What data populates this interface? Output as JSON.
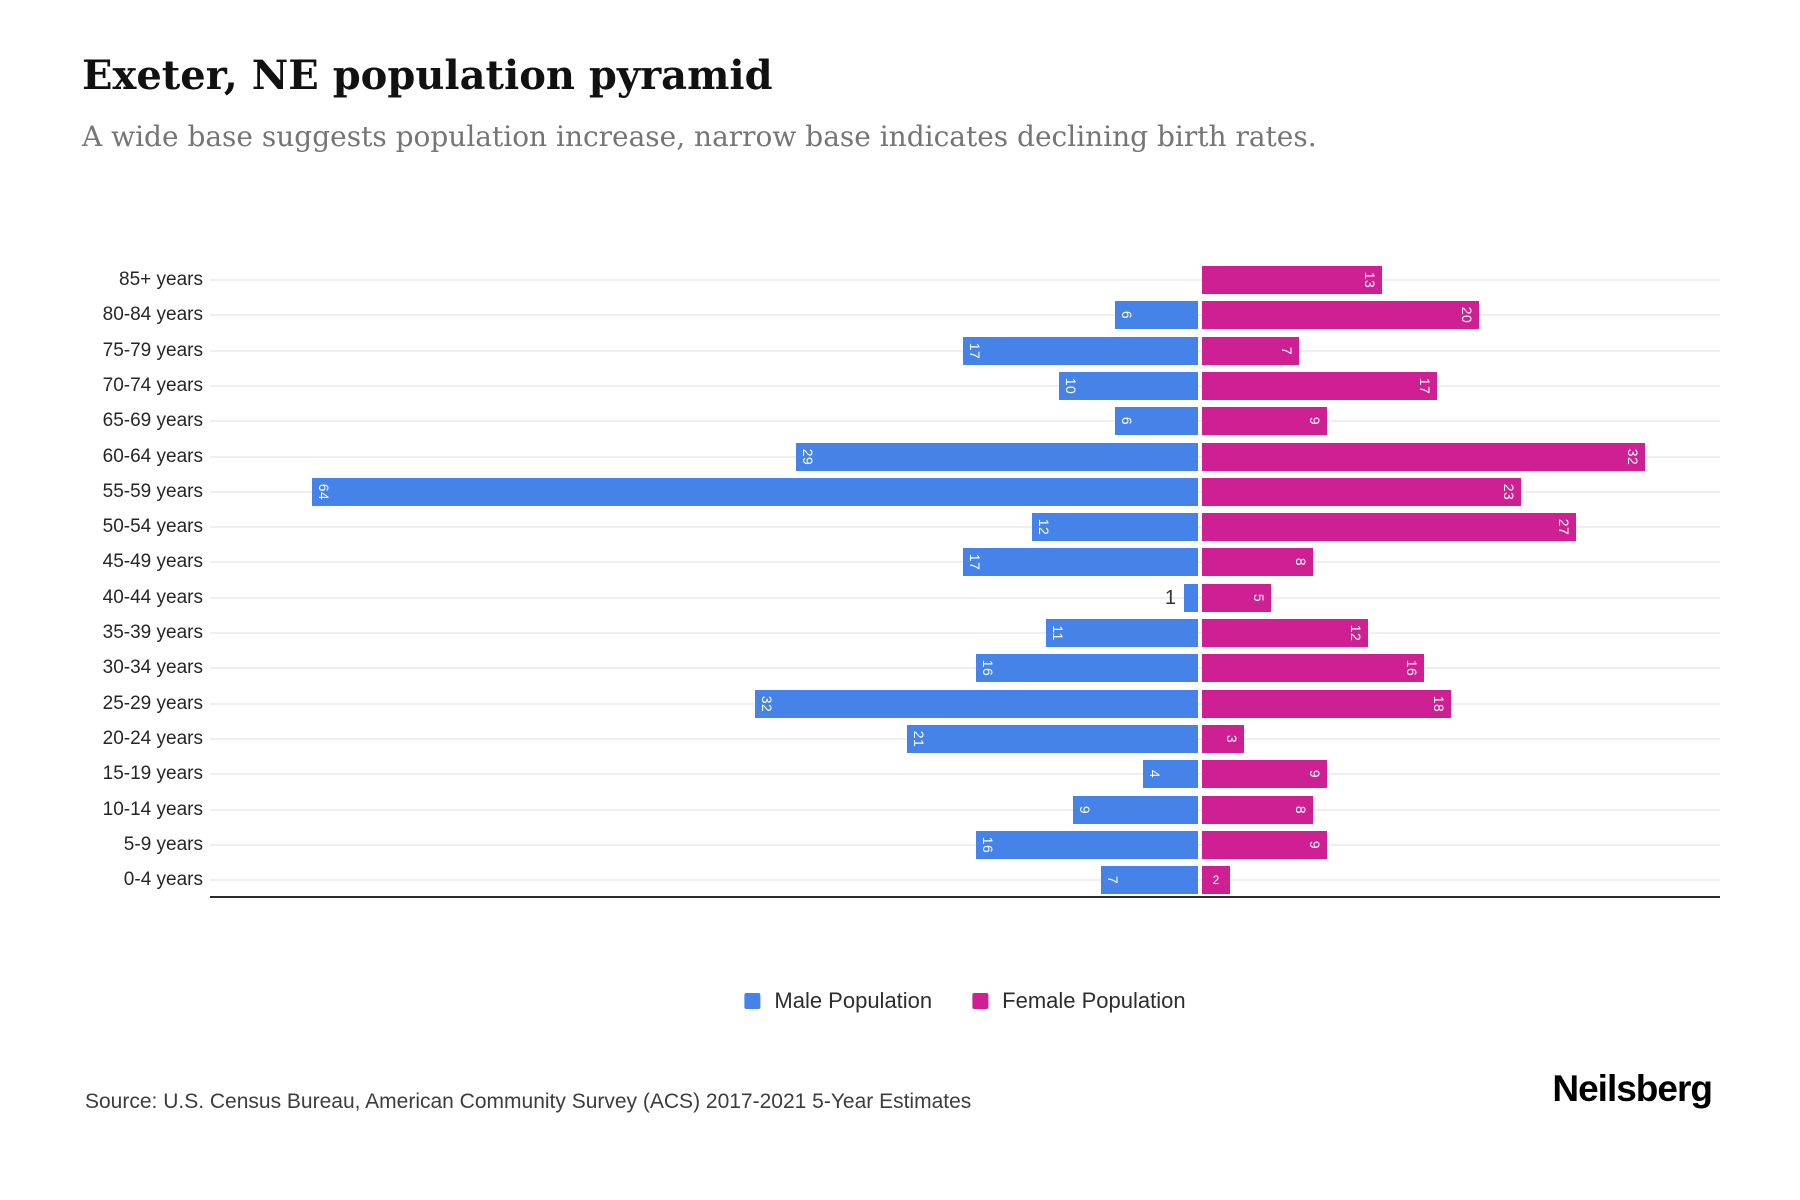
{
  "header": {
    "title": "Exeter, NE population pyramid",
    "subtitle": "A wide base suggests population increase, narrow base indicates declining birth rates."
  },
  "chart_data": {
    "type": "bar",
    "variant": "population-pyramid",
    "orientation": "horizontal",
    "grid": true,
    "legend_position": "bottom",
    "categories": [
      "85+ years",
      "80-84 years",
      "75-79 years",
      "70-74 years",
      "65-69 years",
      "60-64 years",
      "55-59 years",
      "50-54 years",
      "45-49 years",
      "40-44 years",
      "35-39 years",
      "30-34 years",
      "25-29 years",
      "20-24 years",
      "15-19 years",
      "10-14 years",
      "5-9 years",
      "0-4 years"
    ],
    "series": [
      {
        "name": "Male Population",
        "color": "#4583E8",
        "values": [
          0,
          6,
          17,
          10,
          6,
          29,
          64,
          12,
          17,
          1,
          11,
          16,
          32,
          21,
          4,
          9,
          16,
          7
        ]
      },
      {
        "name": "Female Population",
        "color": "#CE2093",
        "values": [
          13,
          20,
          7,
          17,
          9,
          32,
          23,
          27,
          8,
          5,
          12,
          16,
          18,
          3,
          9,
          8,
          9,
          2
        ]
      }
    ]
  },
  "legend": {
    "items": [
      {
        "label": "Male Population",
        "color": "#4583E8"
      },
      {
        "label": "Female Population",
        "color": "#CE2093"
      }
    ]
  },
  "footer": {
    "source": "Source: U.S. Census Bureau, American Community Survey (ACS) 2017-2021 5-Year Estimates",
    "brand": "Neilsberg"
  }
}
